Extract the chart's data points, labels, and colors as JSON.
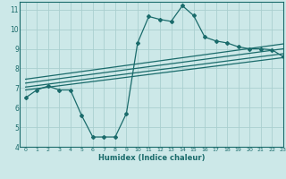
{
  "xlabel": "Humidex (Indice chaleur)",
  "xlim": [
    -0.5,
    23
  ],
  "ylim": [
    4,
    11.4
  ],
  "xticks": [
    0,
    1,
    2,
    3,
    4,
    5,
    6,
    7,
    8,
    9,
    10,
    11,
    12,
    13,
    14,
    15,
    16,
    17,
    18,
    19,
    20,
    21,
    22,
    23
  ],
  "yticks": [
    4,
    5,
    6,
    7,
    8,
    9,
    10,
    11
  ],
  "bg_color": "#cce8e8",
  "grid_color": "#aacfcf",
  "line_color": "#1a6b6b",
  "line1_x": [
    0,
    1,
    2,
    3,
    4,
    5,
    6,
    7,
    8,
    9,
    10,
    11,
    12,
    13,
    14,
    15,
    16,
    17,
    18,
    19,
    20,
    21,
    22,
    23
  ],
  "line1_y": [
    6.5,
    6.9,
    7.1,
    6.9,
    6.9,
    5.6,
    4.5,
    4.5,
    4.5,
    5.7,
    9.3,
    10.65,
    10.5,
    10.4,
    11.2,
    10.7,
    9.6,
    9.4,
    9.3,
    9.1,
    9.0,
    9.0,
    8.95,
    8.6
  ],
  "line2_x": [
    0,
    23
  ],
  "line2_y": [
    6.9,
    8.55
  ],
  "line3_x": [
    0,
    23
  ],
  "line3_y": [
    7.05,
    8.75
  ],
  "line4_x": [
    0,
    23
  ],
  "line4_y": [
    7.25,
    9.0
  ],
  "line5_x": [
    0,
    23
  ],
  "line5_y": [
    7.45,
    9.25
  ]
}
